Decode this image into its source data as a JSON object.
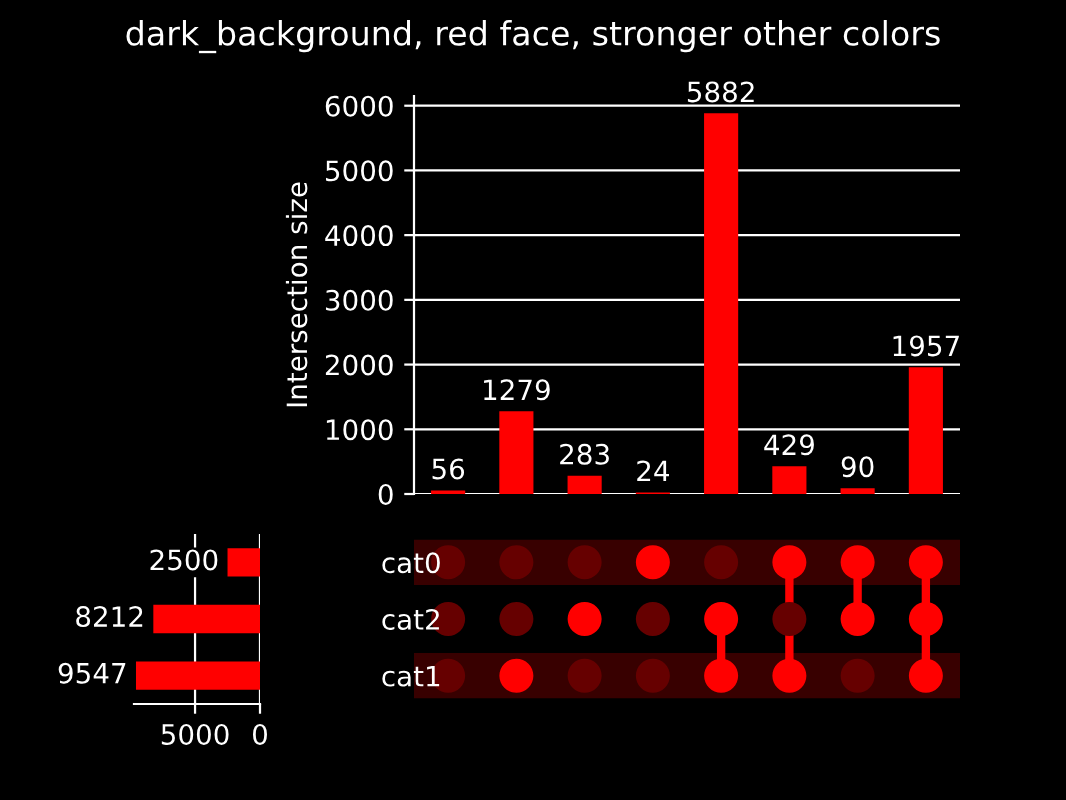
{
  "chart_data": [
    {
      "type": "bar",
      "title": "dark_background, red face, stronger other colors",
      "ylabel": "Intersection size",
      "categories": [
        null,
        null,
        null,
        null,
        null,
        null,
        null,
        null
      ],
      "values": [
        56,
        1279,
        283,
        24,
        5882,
        429,
        90,
        1957
      ],
      "color": "#ff0000",
      "ylim": [
        0,
        6150
      ],
      "yticks": [
        0,
        1000,
        2000,
        3000,
        4000,
        5000,
        6000
      ],
      "grid": "y",
      "data_labels": true,
      "tick_labels": "y"
    },
    {
      "type": "bar",
      "orientation": "horizontal",
      "categories": [
        "cat0",
        "cat2",
        "cat1"
      ],
      "values": [
        2500,
        8212,
        9547
      ],
      "color": "#ff0000",
      "xlim": [
        9700,
        0
      ],
      "xticks": [
        5000,
        0
      ],
      "grid": "x",
      "data_labels": true
    }
  ]
}
